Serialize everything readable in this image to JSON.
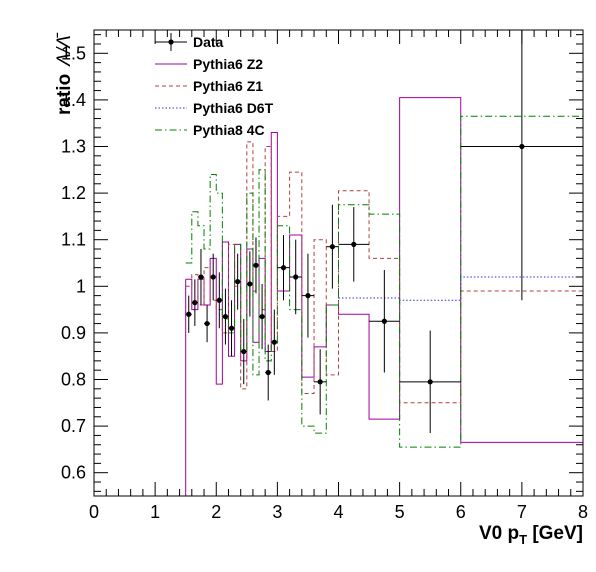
{
  "chart_data": {
    "type": "line",
    "title": "",
    "xlabel": "V0 p",
    "xlabel_sub": "T",
    "xlabel_unit": " [GeV]",
    "ylabel": "ratio",
    "ylabel_symbol": "Λ/Λ̄",
    "xlim": [
      0,
      8
    ],
    "ylim": [
      0.55,
      1.55
    ],
    "x_ticks": [
      "0",
      "1",
      "2",
      "3",
      "4",
      "5",
      "6",
      "7",
      "8"
    ],
    "y_ticks": [
      "0.6",
      "0.7",
      "0.8",
      "0.9",
      "1",
      "1.1",
      "1.2",
      "1.3",
      "1.4",
      "1.5"
    ],
    "grid": false,
    "legend_position": "top-left",
    "legend": [
      {
        "label": "Data",
        "style": "marker"
      },
      {
        "label": "Pythia6 Z2",
        "style": "solid"
      },
      {
        "label": "Pythia6 Z1",
        "style": "dashed"
      },
      {
        "label": "Pythia6 D6T",
        "style": "dotted"
      },
      {
        "label": "Pythia8 4C",
        "style": "dashdot"
      }
    ],
    "data_points": {
      "name": "Data",
      "color": "#000000",
      "points": [
        {
          "x": 1.55,
          "y": 0.94,
          "xerr": 0.05,
          "yerr": 0.04
        },
        {
          "x": 1.65,
          "y": 0.965,
          "xerr": 0.05,
          "yerr": 0.05
        },
        {
          "x": 1.75,
          "y": 1.02,
          "xerr": 0.05,
          "yerr": 0.06
        },
        {
          "x": 1.85,
          "y": 0.92,
          "xerr": 0.05,
          "yerr": 0.04
        },
        {
          "x": 1.95,
          "y": 1.02,
          "xerr": 0.05,
          "yerr": 0.05
        },
        {
          "x": 2.05,
          "y": 0.97,
          "xerr": 0.05,
          "yerr": 0.06
        },
        {
          "x": 2.15,
          "y": 0.935,
          "xerr": 0.05,
          "yerr": 0.06
        },
        {
          "x": 2.25,
          "y": 0.91,
          "xerr": 0.05,
          "yerr": 0.06
        },
        {
          "x": 2.35,
          "y": 1.01,
          "xerr": 0.05,
          "yerr": 0.06
        },
        {
          "x": 2.45,
          "y": 0.86,
          "xerr": 0.05,
          "yerr": 0.07
        },
        {
          "x": 2.55,
          "y": 1.005,
          "xerr": 0.05,
          "yerr": 0.07
        },
        {
          "x": 2.65,
          "y": 1.045,
          "xerr": 0.05,
          "yerr": 0.06
        },
        {
          "x": 2.75,
          "y": 0.935,
          "xerr": 0.05,
          "yerr": 0.07
        },
        {
          "x": 2.85,
          "y": 0.815,
          "xerr": 0.05,
          "yerr": 0.06
        },
        {
          "x": 2.95,
          "y": 0.88,
          "xerr": 0.05,
          "yerr": 0.07
        },
        {
          "x": 3.1,
          "y": 1.04,
          "xerr": 0.1,
          "yerr": 0.07
        },
        {
          "x": 3.3,
          "y": 1.02,
          "xerr": 0.1,
          "yerr": 0.08
        },
        {
          "x": 3.5,
          "y": 0.98,
          "xerr": 0.1,
          "yerr": 0.09
        },
        {
          "x": 3.7,
          "y": 0.795,
          "xerr": 0.1,
          "yerr": 0.07
        },
        {
          "x": 3.9,
          "y": 1.085,
          "xerr": 0.1,
          "yerr": 0.09
        },
        {
          "x": 4.25,
          "y": 1.09,
          "xerr": 0.25,
          "yerr": 0.08
        },
        {
          "x": 4.75,
          "y": 0.925,
          "xerr": 0.25,
          "yerr": 0.11
        },
        {
          "x": 5.5,
          "y": 0.795,
          "xerr": 0.5,
          "yerr": 0.11
        },
        {
          "x": 7.0,
          "y": 1.3,
          "xerr": 1.0,
          "yerr": 0.33
        }
      ]
    },
    "series": [
      {
        "name": "Pythia6 Z2",
        "color": "#a000a0",
        "dash": "solid",
        "bins": [
          {
            "lo": 1.5,
            "hi": 1.6,
            "y": 1.015
          },
          {
            "lo": 1.6,
            "hi": 1.7,
            "y": 0.95
          },
          {
            "lo": 1.7,
            "hi": 1.8,
            "y": 1.015
          },
          {
            "lo": 1.8,
            "hi": 1.9,
            "y": 0.96
          },
          {
            "lo": 1.9,
            "hi": 2.0,
            "y": 1.06
          },
          {
            "lo": 2.0,
            "hi": 2.1,
            "y": 0.79
          },
          {
            "lo": 2.1,
            "hi": 2.2,
            "y": 1.095
          },
          {
            "lo": 2.2,
            "hi": 2.3,
            "y": 0.85
          },
          {
            "lo": 2.3,
            "hi": 2.4,
            "y": 1.09
          },
          {
            "lo": 2.4,
            "hi": 2.5,
            "y": 0.84
          },
          {
            "lo": 2.5,
            "hi": 2.6,
            "y": 1.08
          },
          {
            "lo": 2.6,
            "hi": 2.7,
            "y": 0.88
          },
          {
            "lo": 2.7,
            "hi": 2.8,
            "y": 1.06
          },
          {
            "lo": 2.8,
            "hi": 2.9,
            "y": 0.86
          },
          {
            "lo": 2.9,
            "hi": 3.0,
            "y": 1.33
          },
          {
            "lo": 3.0,
            "hi": 3.2,
            "y": 0.99
          },
          {
            "lo": 3.2,
            "hi": 3.4,
            "y": 1.11
          },
          {
            "lo": 3.4,
            "hi": 3.6,
            "y": 0.805
          },
          {
            "lo": 3.6,
            "hi": 3.8,
            "y": 0.87
          },
          {
            "lo": 3.8,
            "hi": 4.0,
            "y": 0.96
          },
          {
            "lo": 4.0,
            "hi": 4.5,
            "y": 0.94
          },
          {
            "lo": 4.5,
            "hi": 5.0,
            "y": 0.715
          },
          {
            "lo": 5.0,
            "hi": 6.0,
            "y": 1.405
          },
          {
            "lo": 6.0,
            "hi": 8.0,
            "y": 0.665
          }
        ]
      },
      {
        "name": "Pythia6 Z1",
        "color": "#b04040",
        "dash": "dashed",
        "bins": [
          {
            "lo": 1.5,
            "hi": 1.6,
            "y": 1.0
          },
          {
            "lo": 1.6,
            "hi": 1.7,
            "y": 1.025
          },
          {
            "lo": 1.7,
            "hi": 1.8,
            "y": 0.96
          },
          {
            "lo": 1.8,
            "hi": 1.9,
            "y": 1.04
          },
          {
            "lo": 1.9,
            "hi": 2.0,
            "y": 0.97
          },
          {
            "lo": 2.0,
            "hi": 2.1,
            "y": 0.95
          },
          {
            "lo": 2.1,
            "hi": 2.2,
            "y": 0.9
          },
          {
            "lo": 2.2,
            "hi": 2.3,
            "y": 1.09
          },
          {
            "lo": 2.3,
            "hi": 2.4,
            "y": 1.0
          },
          {
            "lo": 2.4,
            "hi": 2.5,
            "y": 0.78
          },
          {
            "lo": 2.5,
            "hi": 2.6,
            "y": 1.31
          },
          {
            "lo": 2.6,
            "hi": 2.7,
            "y": 0.99
          },
          {
            "lo": 2.7,
            "hi": 2.8,
            "y": 0.95
          },
          {
            "lo": 2.8,
            "hi": 2.9,
            "y": 1.3
          },
          {
            "lo": 2.9,
            "hi": 3.0,
            "y": 0.86
          },
          {
            "lo": 3.0,
            "hi": 3.2,
            "y": 1.15
          },
          {
            "lo": 3.2,
            "hi": 3.4,
            "y": 1.245
          },
          {
            "lo": 3.4,
            "hi": 3.6,
            "y": 0.77
          },
          {
            "lo": 3.6,
            "hi": 3.8,
            "y": 1.1
          },
          {
            "lo": 3.8,
            "hi": 4.0,
            "y": 0.81
          },
          {
            "lo": 4.0,
            "hi": 4.5,
            "y": 1.205
          },
          {
            "lo": 4.5,
            "hi": 5.0,
            "y": 1.06
          },
          {
            "lo": 5.0,
            "hi": 6.0,
            "y": 0.75
          },
          {
            "lo": 6.0,
            "hi": 8.0,
            "y": 0.99
          }
        ]
      },
      {
        "name": "Pythia6 D6T",
        "color": "#3030d0",
        "dash": "dotted",
        "bins": [
          {
            "lo": 4.0,
            "hi": 5.0,
            "y": 0.975
          },
          {
            "lo": 5.0,
            "hi": 6.0,
            "y": 0.97
          },
          {
            "lo": 6.0,
            "hi": 8.0,
            "y": 1.02
          }
        ]
      },
      {
        "name": "Pythia8 4C",
        "color": "#008000",
        "dash": "dashdot",
        "bins": [
          {
            "lo": 1.5,
            "hi": 1.6,
            "y": 1.05
          },
          {
            "lo": 1.6,
            "hi": 1.7,
            "y": 1.16
          },
          {
            "lo": 1.7,
            "hi": 1.8,
            "y": 1.13
          },
          {
            "lo": 1.8,
            "hi": 1.9,
            "y": 1.08
          },
          {
            "lo": 1.9,
            "hi": 2.0,
            "y": 1.24
          },
          {
            "lo": 2.0,
            "hi": 2.1,
            "y": 1.2
          },
          {
            "lo": 2.1,
            "hi": 2.2,
            "y": 0.93
          },
          {
            "lo": 2.2,
            "hi": 2.3,
            "y": 0.9
          },
          {
            "lo": 2.3,
            "hi": 2.4,
            "y": 1.09
          },
          {
            "lo": 2.4,
            "hi": 2.5,
            "y": 0.86
          },
          {
            "lo": 2.5,
            "hi": 2.6,
            "y": 1.2
          },
          {
            "lo": 2.6,
            "hi": 2.7,
            "y": 0.81
          },
          {
            "lo": 2.7,
            "hi": 2.8,
            "y": 1.25
          },
          {
            "lo": 2.8,
            "hi": 2.9,
            "y": 0.84
          },
          {
            "lo": 2.9,
            "hi": 3.0,
            "y": 0.88
          },
          {
            "lo": 3.0,
            "hi": 3.2,
            "y": 1.13
          },
          {
            "lo": 3.2,
            "hi": 3.4,
            "y": 0.95
          },
          {
            "lo": 3.4,
            "hi": 3.6,
            "y": 0.7
          },
          {
            "lo": 3.6,
            "hi": 3.8,
            "y": 0.685
          },
          {
            "lo": 3.8,
            "hi": 4.0,
            "y": 0.96
          },
          {
            "lo": 4.0,
            "hi": 4.5,
            "y": 1.175
          },
          {
            "lo": 4.5,
            "hi": 5.0,
            "y": 1.155
          },
          {
            "lo": 5.0,
            "hi": 6.0,
            "y": 0.655
          },
          {
            "lo": 6.0,
            "hi": 8.0,
            "y": 1.365
          }
        ]
      }
    ]
  }
}
